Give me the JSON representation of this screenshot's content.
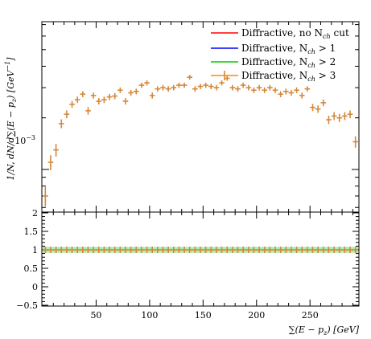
{
  "chart_data": [
    {
      "type": "line",
      "panel": "main",
      "ylabel": "1/N, dN/d∑(E − pz) [GeV⁻¹]",
      "ylabel_parts": {
        "lead": "1/N, dN/d",
        "sigma": "∑",
        "mid": "(E − p",
        "sub": "z",
        "tail": ") [GeV",
        "sup": "−1",
        "close": "]"
      },
      "y_scale": "log",
      "y_tick_label": {
        "base": "10",
        "exp": "−3"
      },
      "xlim": [
        0,
        295
      ],
      "ylim": [
        0.00057,
        0.0072
      ],
      "legend_position": "top-right",
      "legend": [
        {
          "label": "Diffractive, no N",
          "sub": "ch",
          "suffix": " cut",
          "color": "#ff0000"
        },
        {
          "label": "Diffractive, N",
          "sub": "ch",
          "suffix": " > 1",
          "color": "#0000ff"
        },
        {
          "label": "Diffractive, N",
          "sub": "ch",
          "suffix": " > 2",
          "color": "#00cc00"
        },
        {
          "label": "Diffractive, N",
          "sub": "ch",
          "suffix": " > 3",
          "color": "#ff8c00"
        }
      ],
      "marker_color": "#d4883a",
      "x": [
        2.5,
        7.5,
        12.5,
        17.5,
        22.5,
        27.5,
        32.5,
        37.5,
        42.5,
        47.5,
        52.5,
        57.5,
        62.5,
        67.5,
        72.5,
        77.5,
        82.5,
        87.5,
        92.5,
        97.5,
        102.5,
        107.5,
        112.5,
        117.5,
        122.5,
        127.5,
        132.5,
        137.5,
        142.5,
        147.5,
        152.5,
        157.5,
        162.5,
        167.5,
        172.5,
        177.5,
        182.5,
        187.5,
        192.5,
        197.5,
        202.5,
        207.5,
        212.5,
        217.5,
        222.5,
        227.5,
        232.5,
        237.5,
        242.5,
        247.5,
        252.5,
        257.5,
        262.5,
        267.5,
        272.5,
        277.5,
        282.5,
        287.5,
        292.5
      ],
      "y": [
        0.0007,
        0.0011,
        0.0013,
        0.00185,
        0.0021,
        0.0024,
        0.00255,
        0.00275,
        0.0022,
        0.0027,
        0.0025,
        0.00255,
        0.00265,
        0.00268,
        0.0029,
        0.0025,
        0.0028,
        0.00285,
        0.0031,
        0.0032,
        0.0027,
        0.00295,
        0.003,
        0.00295,
        0.003,
        0.0031,
        0.0031,
        0.00345,
        0.00295,
        0.00305,
        0.0031,
        0.00305,
        0.003,
        0.0032,
        0.0034,
        0.003,
        0.00295,
        0.0031,
        0.003,
        0.0029,
        0.003,
        0.0029,
        0.003,
        0.0029,
        0.00275,
        0.00285,
        0.0028,
        0.0029,
        0.0027,
        0.00295,
        0.0023,
        0.00225,
        0.00245,
        0.00195,
        0.00205,
        0.002,
        0.00205,
        0.0021,
        0.00145
      ],
      "y_err": [
        9e-05,
        0.00011,
        0.00011,
        0.00011,
        0.00011,
        0.00011,
        0.00011,
        0.00011,
        0.00011,
        0.00011,
        0.00011,
        0.00011,
        0.00011,
        0.00011,
        0.00011,
        0.00011,
        0.00011,
        0.00011,
        0.00011,
        0.00011,
        0.00011,
        0.00011,
        0.00011,
        0.00011,
        0.00011,
        0.00011,
        0.00011,
        0.00011,
        0.00011,
        0.00011,
        0.00011,
        0.00011,
        0.00011,
        0.00011,
        0.00011,
        0.00011,
        0.00011,
        0.00011,
        0.00011,
        0.00011,
        0.00011,
        0.00011,
        0.00011,
        0.00011,
        0.00011,
        0.00011,
        0.00011,
        0.00011,
        0.00011,
        0.00011,
        0.00011,
        0.00011,
        0.00011,
        0.00011,
        0.00011,
        0.00011,
        0.00011,
        0.00011,
        0.00011
      ]
    },
    {
      "type": "line",
      "panel": "ratio",
      "xlabel": "∑(E − pz) [GeV]",
      "xlabel_parts": {
        "sigma": "∑",
        "lead": "(E − p",
        "sub": "z",
        "tail": ") [GeV]"
      },
      "xlim": [
        0,
        295
      ],
      "ylim": [
        -0.5,
        2
      ],
      "x_ticks": [
        50,
        100,
        150,
        200,
        250
      ],
      "y_ticks": [
        -0.5,
        0,
        0.5,
        1,
        1.5,
        2
      ],
      "y_tick_labels": [
        "−0.5",
        "0",
        "0.5",
        "1",
        "1.5",
        "2"
      ],
      "series_values": 1,
      "band_color": "#9be79b"
    }
  ]
}
